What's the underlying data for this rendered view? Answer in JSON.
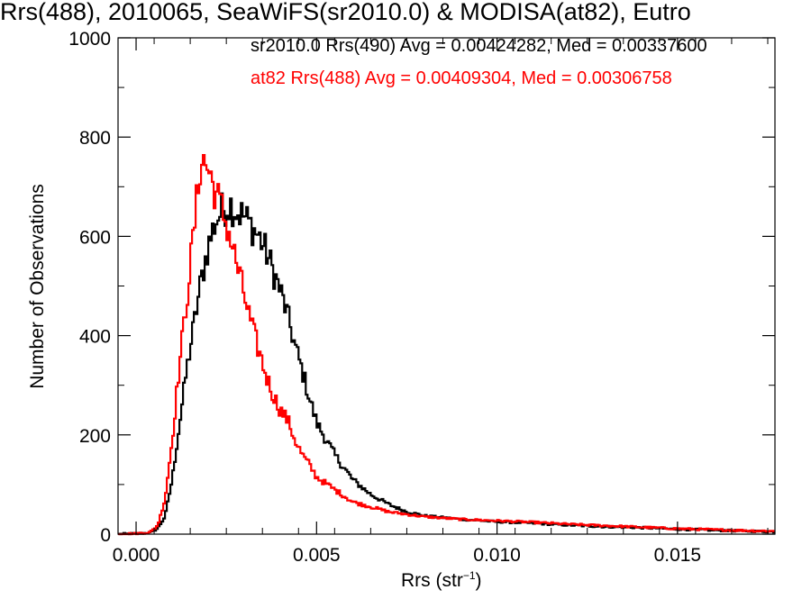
{
  "chart_data": {
    "type": "line",
    "title": "Rrs(488), 2010065, SeaWiFS(sr2010.0) & MODISA(at82), Eutro",
    "xlabel_prefix": "Rrs (str",
    "xlabel_exp": "−1",
    "xlabel_suffix": ")",
    "ylabel": "Number of Observations",
    "xlim": [
      -0.0005,
      0.0177
    ],
    "ylim": [
      0,
      1000
    ],
    "xticks": [
      0.0,
      0.005,
      0.01,
      0.015
    ],
    "xtick_labels": [
      "0.000",
      "0.005",
      "0.010",
      "0.015"
    ],
    "yticks": [
      0,
      200,
      400,
      600,
      800,
      1000
    ],
    "ytick_labels": [
      "0",
      "200",
      "400",
      "600",
      "800",
      "1000"
    ],
    "grid": false,
    "legend_position": "top",
    "series": [
      {
        "name": "sr2010.0 Rrs(490) Avg = 0.00424282, Med = 0.00337600",
        "color": "#000000",
        "step": true,
        "x": [
          -0.0005,
          0.0,
          0.0004,
          0.0006,
          0.0008,
          0.001,
          0.0012,
          0.0014,
          0.0016,
          0.0018,
          0.002,
          0.0022,
          0.0024,
          0.0026,
          0.0028,
          0.003,
          0.0032,
          0.0034,
          0.0036,
          0.0038,
          0.004,
          0.0042,
          0.0044,
          0.0046,
          0.0048,
          0.005,
          0.0055,
          0.006,
          0.0065,
          0.007,
          0.0075,
          0.008,
          0.009,
          0.01,
          0.011,
          0.012,
          0.013,
          0.014,
          0.015,
          0.016,
          0.017,
          0.0177
        ],
        "y": [
          0,
          1,
          3,
          12,
          35,
          110,
          220,
          330,
          420,
          510,
          580,
          630,
          655,
          665,
          650,
          640,
          620,
          600,
          570,
          530,
          490,
          440,
          380,
          330,
          275,
          225,
          160,
          110,
          80,
          60,
          45,
          37,
          30,
          25,
          22,
          18,
          15,
          13,
          10,
          8,
          6,
          5
        ]
      },
      {
        "name": "at82 Rrs(488) Avg = 0.00409304, Med = 0.00306758",
        "color": "#ff0000",
        "step": true,
        "x": [
          -0.0005,
          0.0,
          0.0004,
          0.0006,
          0.0008,
          0.001,
          0.0012,
          0.0014,
          0.0016,
          0.0018,
          0.002,
          0.0022,
          0.0024,
          0.0026,
          0.0028,
          0.003,
          0.0032,
          0.0034,
          0.0036,
          0.0038,
          0.004,
          0.0042,
          0.0044,
          0.0046,
          0.0048,
          0.005,
          0.0055,
          0.006,
          0.0065,
          0.007,
          0.0075,
          0.008,
          0.009,
          0.01,
          0.011,
          0.012,
          0.013,
          0.014,
          0.015,
          0.016,
          0.017,
          0.0177
        ],
        "y": [
          0,
          1,
          4,
          18,
          70,
          190,
          340,
          470,
          610,
          760,
          735,
          690,
          650,
          600,
          540,
          480,
          420,
          370,
          320,
          280,
          250,
          230,
          190,
          160,
          140,
          115,
          90,
          65,
          55,
          45,
          40,
          35,
          30,
          27,
          24,
          20,
          17,
          14,
          11,
          9,
          7,
          6
        ]
      }
    ]
  }
}
